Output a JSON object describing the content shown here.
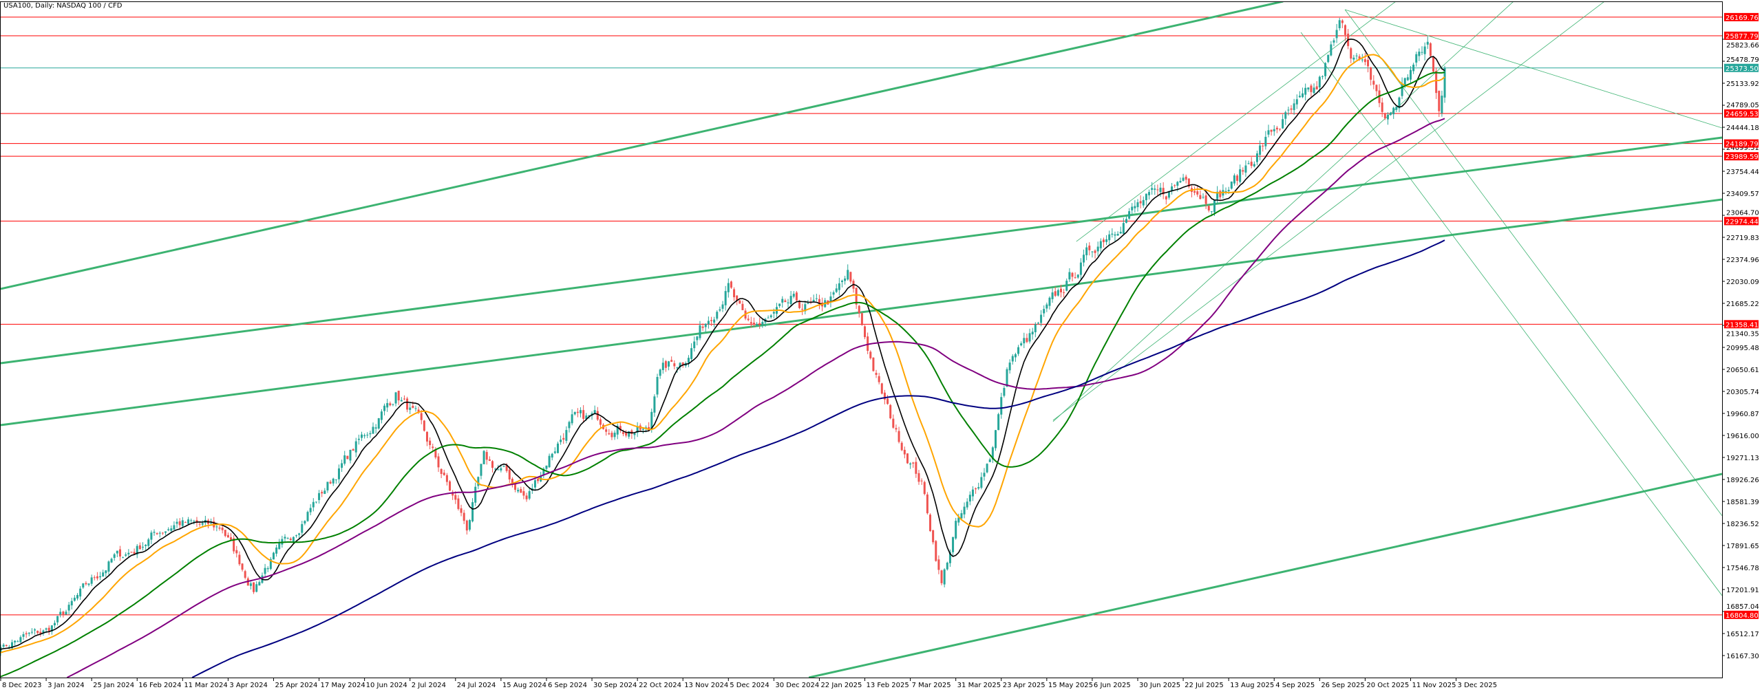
{
  "header": {
    "title": "USA100, Daily:  NASDAQ 100 / CFD"
  },
  "colors": {
    "bull": "#26a69a",
    "bear": "#ef5350",
    "level": "#ff0000",
    "current": "#26a69a",
    "trend": "#3cb371",
    "axis": "#000000"
  },
  "chart_data": {
    "type": "candlestick",
    "title": "USA100, Daily:  NASDAQ 100 / CFD",
    "ylim": [
      15900,
      26900
    ],
    "grid": false,
    "x_ticks": [
      "8 Dec 2023",
      "3 Jan 2024",
      "25 Jan 2024",
      "16 Feb 2024",
      "11 Mar 2024",
      "3 Apr 2024",
      "25 Apr 2024",
      "17 May 2024",
      "10 Jun 2024",
      "2 Jul 2024",
      "24 Jul 2024",
      "15 Aug 2024",
      "6 Sep 2024",
      "30 Sep 2024",
      "22 Oct 2024",
      "13 Nov 2024",
      "5 Dec 2024",
      "30 Dec 2024",
      "22 Jan 2025",
      "13 Feb 2025",
      "7 Mar 2025",
      "31 Mar 2025",
      "23 Apr 2025",
      "15 May 2025",
      "6 Jun 2025",
      "30 Jun 2025",
      "22 Jul 2025",
      "13 Aug 2025",
      "4 Sep 2025",
      "26 Sep 2025",
      "20 Oct 2025",
      "11 Nov 2025",
      "3 Dec 2025"
    ],
    "bars_per_x_tick": 16,
    "y_ticks": [
      "16167.30",
      "16512.17",
      "16857.04",
      "17201.91",
      "17546.78",
      "17891.65",
      "18236.52",
      "18581.39",
      "18926.26",
      "19271.13",
      "19616.00",
      "19960.87",
      "20305.74",
      "20650.61",
      "20995.48",
      "21340.35",
      "21685.22",
      "22030.09",
      "22374.96",
      "22719.83",
      "23064.70",
      "23409.57",
      "23754.44",
      "24099.31",
      "24444.18",
      "24789.05",
      "25133.92",
      "25478.79",
      "25823.66"
    ],
    "close_anchors": [
      [
        0,
        16300
      ],
      [
        8,
        16450
      ],
      [
        16,
        16550
      ],
      [
        24,
        16900
      ],
      [
        31,
        17290
      ],
      [
        40,
        17700
      ],
      [
        47,
        17820
      ],
      [
        55,
        18100
      ],
      [
        62,
        18260
      ],
      [
        70,
        18200
      ],
      [
        78,
        18170
      ],
      [
        89,
        17200
      ],
      [
        93,
        17550
      ],
      [
        100,
        17900
      ],
      [
        108,
        18430
      ],
      [
        116,
        18900
      ],
      [
        124,
        19400
      ],
      [
        133,
        19900
      ],
      [
        139,
        20280
      ],
      [
        146,
        19900
      ],
      [
        154,
        19140
      ],
      [
        164,
        18170
      ],
      [
        170,
        19230
      ],
      [
        178,
        19000
      ],
      [
        185,
        18610
      ],
      [
        193,
        19300
      ],
      [
        201,
        19840
      ],
      [
        209,
        19900
      ],
      [
        216,
        19750
      ],
      [
        228,
        19660
      ],
      [
        231,
        20630
      ],
      [
        240,
        20800
      ],
      [
        247,
        21330
      ],
      [
        256,
        21950
      ],
      [
        262,
        21330
      ],
      [
        270,
        21400
      ],
      [
        278,
        21680
      ],
      [
        286,
        21600
      ],
      [
        293,
        21770
      ],
      [
        298,
        22120
      ],
      [
        309,
        20370
      ],
      [
        315,
        19660
      ],
      [
        324,
        18870
      ],
      [
        331,
        17290
      ],
      [
        336,
        18200
      ],
      [
        340,
        18500
      ],
      [
        348,
        19300
      ],
      [
        355,
        20800
      ],
      [
        363,
        21200
      ],
      [
        371,
        21770
      ],
      [
        380,
        22300
      ],
      [
        386,
        22650
      ],
      [
        394,
        23000
      ],
      [
        402,
        23270
      ],
      [
        410,
        23400
      ],
      [
        417,
        23710
      ],
      [
        425,
        23300
      ],
      [
        433,
        23530
      ],
      [
        441,
        24000
      ],
      [
        448,
        24410
      ],
      [
        455,
        24700
      ],
      [
        463,
        25030
      ],
      [
        472,
        26100
      ],
      [
        475,
        25700
      ],
      [
        479,
        25400
      ],
      [
        484,
        25000
      ],
      [
        487,
        24530
      ],
      [
        492,
        24900
      ],
      [
        494,
        25220
      ],
      [
        502,
        25750
      ],
      [
        506,
        24790
      ],
      [
        508,
        25373.5
      ]
    ],
    "moving_averages": [
      {
        "period": 9,
        "color": "#000000"
      },
      {
        "period": 20,
        "color": "#ffa500"
      },
      {
        "period": 50,
        "color": "#008000"
      },
      {
        "period": 100,
        "color": "#800080"
      },
      {
        "period": 200,
        "color": "#000080"
      }
    ],
    "current_price": {
      "value": 25373.5,
      "label": "25373.50"
    },
    "levels": [
      {
        "value": 26169.76,
        "label": "26169.76"
      },
      {
        "value": 25877.79,
        "label": "25877.79"
      },
      {
        "value": 24659.53,
        "label": "24659.53"
      },
      {
        "value": 24189.79,
        "label": "24189.79"
      },
      {
        "value": 23989.59,
        "label": "23989.59"
      },
      {
        "value": 22974.44,
        "label": "22974.44"
      },
      {
        "value": 21358.41,
        "label": "21358.41"
      },
      {
        "value": 16804.8,
        "label": "16804.80"
      }
    ],
    "trend_lines": [
      {
        "from": [
          0,
          21912
        ],
        "to": [
          453.3,
          26438
        ],
        "style": "thick"
      },
      {
        "from": [
          0,
          20748
        ],
        "to": [
          605.6,
          24283
        ],
        "style": "thick"
      },
      {
        "from": [
          0,
          19778
        ],
        "to": [
          605.6,
          23313
        ],
        "style": "thick"
      },
      {
        "from": [
          278.9,
          15769
        ],
        "to": [
          605.6,
          19013
        ],
        "style": "thick"
      },
      {
        "from": [
          472.9,
          26287
        ],
        "to": [
          605.6,
          24433
        ],
        "style": "thin"
      },
      {
        "from": [
          457.4,
          25931
        ],
        "to": [
          605.6,
          17105
        ],
        "style": "thin"
      },
      {
        "from": [
          472.9,
          26287
        ],
        "to": [
          605.6,
          18356
        ],
        "style": "thin"
      },
      {
        "from": [
          378.4,
          22655
        ],
        "to": [
          490.8,
          26416
        ],
        "style": "thin"
      },
      {
        "from": [
          370.2,
          19832
        ],
        "to": [
          532.2,
          26416
        ],
        "style": "thin"
      },
      {
        "from": [
          370.2,
          19853
        ],
        "to": [
          564.2,
          26416
        ],
        "style": "thin"
      }
    ]
  }
}
